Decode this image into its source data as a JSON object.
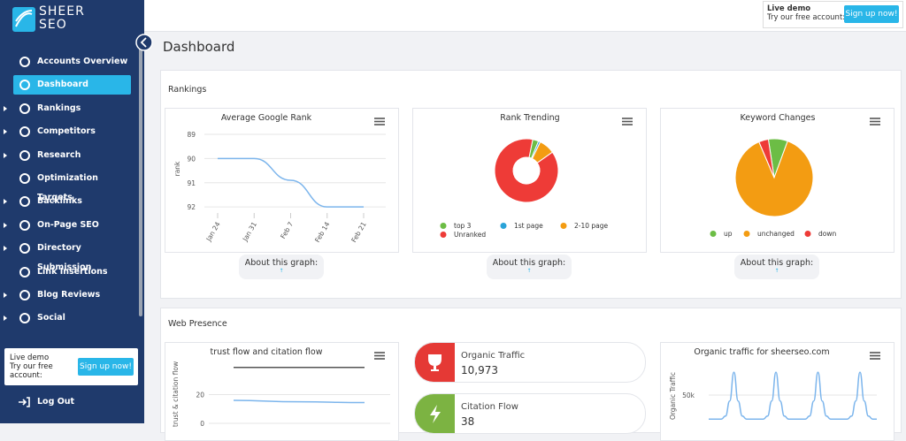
{
  "sidebar": {
    "logo": [
      "SHEER",
      "SEO"
    ],
    "menu": [
      {
        "label": "Accounts Overview",
        "expandable": false
      },
      {
        "label": "Dashboard",
        "expandable": false,
        "active": true
      },
      {
        "label": "Rankings",
        "expandable": true
      },
      {
        "label": "Competitors",
        "expandable": true
      },
      {
        "label": "Research",
        "expandable": true
      },
      {
        "label": "Optimization Targets",
        "expandable": false
      },
      {
        "label": "Backlinks",
        "expandable": true
      },
      {
        "label": "On-Page SEO",
        "expandable": true
      },
      {
        "label": "Directory Submission",
        "expandable": true
      },
      {
        "label": "Link Insertions",
        "expandable": false
      },
      {
        "label": "Blog Reviews",
        "expandable": true
      },
      {
        "label": "Social",
        "expandable": true
      }
    ],
    "demo": {
      "title": "Live demo",
      "text": "Try our free account:",
      "button": "Sign up now!"
    },
    "logout": "Log Out"
  },
  "topbar": {
    "demo": {
      "title": "Live demo",
      "text": "Try our free account:",
      "button": "Sign up now!"
    }
  },
  "page_title": "Dashboard",
  "rankings": {
    "title": "Rankings",
    "about": "About this graph:",
    "about_icon": "↑",
    "charts": [
      {
        "type": "line",
        "title": "Average Google Rank",
        "y_label": "rank",
        "categories": [
          "Jan 24",
          "Jan 31",
          "Feb 7",
          "Feb 14",
          "Feb 21"
        ],
        "values": [
          90,
          90,
          90.9,
          92,
          92
        ],
        "color": "#7cb5ec",
        "ylim": [
          88.6,
          92.25
        ],
        "yticks": [
          89,
          90,
          91,
          92
        ],
        "y_reversed": true,
        "grid": true
      },
      {
        "type": "donut",
        "title": "Rank Trending",
        "categories": [
          "top 3",
          "1st page",
          "2-10 page",
          "Unranked"
        ],
        "values": [
          3,
          1,
          8,
          88
        ],
        "colors": [
          "#6cbd45",
          "#2aa3d8",
          "#f39c12",
          "#ee3b37"
        ]
      },
      {
        "type": "pie",
        "title": "Keyword Changes",
        "categories": [
          "up",
          "unchanged",
          "down"
        ],
        "values": [
          8,
          88,
          4
        ],
        "colors": [
          "#6cbd45",
          "#f39c12",
          "#ee3b37"
        ]
      }
    ]
  },
  "web_presence": {
    "title": "Web Presence",
    "trust_chart": {
      "type": "line",
      "title": "trust flow and citation flow",
      "y_label": "trust & citation flow",
      "ylim": [
        0,
        45
      ],
      "yticks": [
        0,
        20
      ],
      "series": [
        {
          "color": "#555555",
          "values": [
            39,
            39,
            39
          ]
        },
        {
          "color": "#7cb5ec",
          "values": [
            16,
            15,
            14.5
          ]
        }
      ]
    },
    "stats": [
      {
        "label": "Organic Traffic",
        "value": "10,973",
        "color": "#e53935"
      },
      {
        "label": "Citation Flow",
        "value": "38",
        "color": "#7cb342"
      }
    ],
    "traffic_chart": {
      "type": "line",
      "title": "Organic traffic for sheerseo.com",
      "y_label": "Organic Traffic",
      "ylim": [
        0,
        100000
      ],
      "yticks": [
        {
          "value": 50000,
          "label": "50k"
        }
      ],
      "color": "#7cb5ec",
      "values": [
        10000,
        10000,
        10000,
        10000,
        15000,
        40000,
        88000,
        40000,
        15000,
        10000,
        10000,
        10000,
        10000,
        10000,
        15000,
        40000,
        88000,
        40000,
        15000,
        10000,
        10000,
        10000,
        10000,
        10000,
        15000,
        40000,
        88000,
        40000,
        15000,
        10000,
        10000,
        10000,
        10000,
        10000,
        15000,
        40000,
        88000,
        40000,
        15000,
        10000,
        10000
      ]
    }
  }
}
